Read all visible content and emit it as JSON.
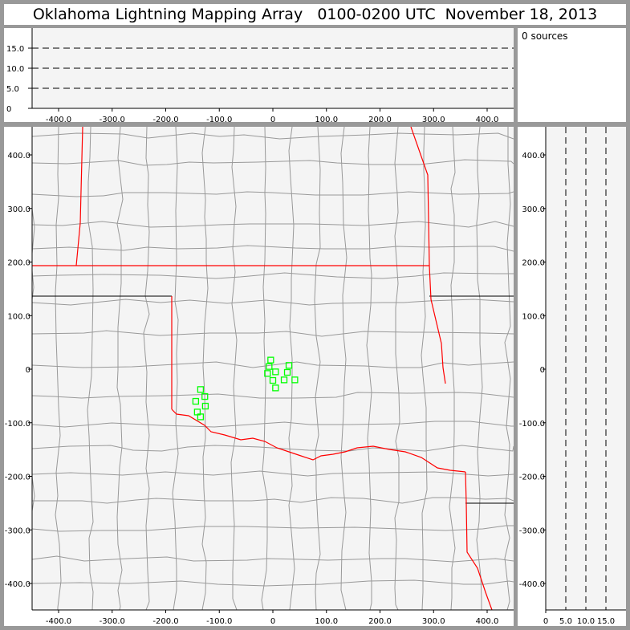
{
  "title": "Oklahoma Lightning Mapping Array   0100-0200 UTC  November 18, 2013",
  "source_count_label": "0 sources",
  "colors": {
    "frame": "#999999",
    "plot_bg": "#f4f4f4",
    "state_border": "#ff0000",
    "county_border": "#999999",
    "station": "#00ff00"
  },
  "chart_data": [
    {
      "type": "line",
      "panel": "altitude-vs-east-west",
      "xlim": [
        -460,
        440
      ],
      "ylim": [
        0,
        20
      ],
      "x_ticks": [
        "-400.0",
        "-300.0",
        "-200.0",
        "-100.0",
        "0",
        "100.0",
        "200.0",
        "300.0",
        "400.0"
      ],
      "x_tick_values": [
        -400,
        -300,
        -200,
        -100,
        0,
        100,
        200,
        300,
        400
      ],
      "y_ticks": [
        "0",
        "5.0",
        "10.0",
        "15.0"
      ],
      "y_tick_values": [
        0,
        5,
        10,
        15
      ],
      "dashed_reference_lines": [
        5,
        10,
        15
      ],
      "series": []
    },
    {
      "type": "scatter",
      "panel": "plan-view-map",
      "xlim": [
        -460,
        440
      ],
      "ylim": [
        -450,
        450
      ],
      "x_ticks": [
        "-400.0",
        "-300.0",
        "-200.0",
        "-100.0",
        "0",
        "100.0",
        "200.0",
        "300.0",
        "400.0"
      ],
      "x_tick_values": [
        -400,
        -300,
        -200,
        -100,
        0,
        100,
        200,
        300,
        400
      ],
      "y_ticks": [
        "400.0",
        "300.0",
        "200.0",
        "100.0",
        "0",
        "-100.0",
        "-200.0",
        "-300.0",
        "-400.0"
      ],
      "y_tick_values": [
        400,
        300,
        200,
        100,
        0,
        -100,
        -200,
        -300,
        -400
      ],
      "marker": "open-square",
      "points": [
        {
          "x": -4,
          "y": 17
        },
        {
          "x": -7,
          "y": 5
        },
        {
          "x": -10,
          "y": -8
        },
        {
          "x": 5,
          "y": -5
        },
        {
          "x": 30,
          "y": 7
        },
        {
          "x": 27,
          "y": -6
        },
        {
          "x": 0,
          "y": -21
        },
        {
          "x": 21,
          "y": -20
        },
        {
          "x": 41,
          "y": -20
        },
        {
          "x": 5,
          "y": -35
        },
        {
          "x": -135,
          "y": -38
        },
        {
          "x": -127,
          "y": -51
        },
        {
          "x": -144,
          "y": -60
        },
        {
          "x": -126,
          "y": -69
        },
        {
          "x": -141,
          "y": -80
        },
        {
          "x": -135,
          "y": -89
        }
      ]
    },
    {
      "type": "line",
      "panel": "north-south-vs-altitude",
      "xlim": [
        0,
        20
      ],
      "ylim": [
        -450,
        450
      ],
      "x_ticks": [
        "0",
        "5.0",
        "10.0",
        "15.0"
      ],
      "x_tick_values": [
        0,
        5,
        10,
        15
      ],
      "y_ticks": [
        "400.0",
        "300.0",
        "200.0",
        "100.0",
        "0",
        "-100.0",
        "-200.0",
        "-300.0",
        "-400.0"
      ],
      "y_tick_values": [
        400,
        300,
        200,
        100,
        0,
        -100,
        -200,
        -300,
        -400
      ],
      "dashed_reference_lines": [
        5,
        10,
        15
      ],
      "series": []
    }
  ]
}
